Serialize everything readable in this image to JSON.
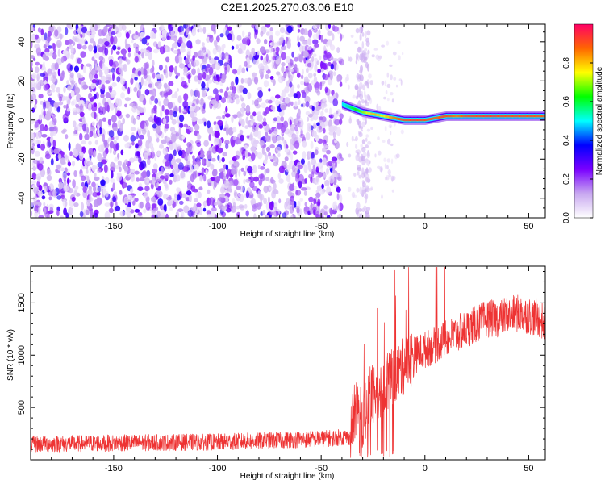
{
  "title": "C2E1.2025.270.03.06.E10",
  "chart_data": [
    {
      "type": "heatmap",
      "title": "C2E1.2025.270.03.06.E10",
      "xlabel": "Height of straight line (km)",
      "ylabel": "Frequency (Hz)",
      "xlim": [
        -190,
        58
      ],
      "ylim": [
        -50,
        49
      ],
      "xticks": [
        -150,
        -100,
        -50,
        0,
        50
      ],
      "yticks": [
        -40,
        -20,
        0,
        20,
        40
      ],
      "colorbar": {
        "label": "Normalized spectral amplitude",
        "range": [
          0,
          1
        ],
        "ticks": [
          0.0,
          0.2,
          0.4,
          0.6,
          0.8
        ],
        "colors": [
          "#ffffff",
          "#c8a8f0",
          "#7a00ff",
          "#0000ff",
          "#00ffff",
          "#00ff00",
          "#ffff00",
          "#ff6600",
          "#ff0066"
        ]
      },
      "noise_region": {
        "x": [
          -190,
          -40
        ],
        "amplitude": 0.2
      },
      "ridge": {
        "x": [
          -40,
          -35,
          -30,
          -25,
          -20,
          -15,
          -10,
          -5,
          0,
          5,
          10,
          15,
          20,
          30,
          40,
          50,
          58
        ],
        "frequency": [
          8,
          6,
          4,
          3,
          2,
          1,
          0,
          0,
          0,
          1,
          2,
          2,
          2,
          2,
          2,
          2,
          2
        ],
        "amplitude": [
          0.5,
          0.6,
          0.7,
          0.8,
          0.75,
          0.85,
          0.9,
          0.92,
          0.9,
          0.88,
          0.9,
          0.85,
          0.9,
          0.92,
          0.9,
          0.9,
          0.88
        ]
      }
    },
    {
      "type": "line",
      "xlabel": "Height of straight line (km)",
      "ylabel": "SNR (10 * v/v)",
      "xlim": [
        -190,
        58
      ],
      "ylim": [
        0,
        1850
      ],
      "xticks": [
        -150,
        -100,
        -50,
        0,
        50
      ],
      "yticks": [
        500,
        1000,
        1500
      ],
      "series": [
        {
          "name": "SNR",
          "color": "#ee3333",
          "x": [
            -190,
            -150,
            -100,
            -50,
            -36,
            -33,
            -30,
            -27,
            -24,
            -20,
            -15,
            -10,
            -5,
            0,
            5,
            10,
            15,
            20,
            25,
            30,
            35,
            40,
            45,
            50,
            55,
            58
          ],
          "y": [
            150,
            160,
            170,
            200,
            220,
            550,
            350,
            600,
            650,
            700,
            800,
            900,
            1000,
            1050,
            1100,
            1150,
            1200,
            1250,
            1300,
            1350,
            1350,
            1380,
            1400,
            1380,
            1350,
            1300
          ]
        }
      ]
    }
  ]
}
